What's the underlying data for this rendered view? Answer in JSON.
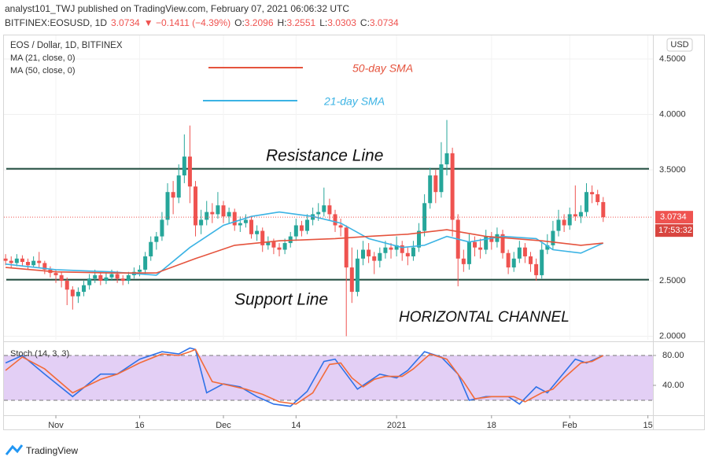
{
  "header": {
    "publisher": "analyst101_TWJ published on TradingView.com, February 07, 2021 06:06:32 UTC",
    "symbol": "BITFINEX:EOSUSD, 1D",
    "price": "3.0734",
    "change": "▼ −0.1411 (−4.39%)",
    "ohlc": [
      {
        "label": "O:",
        "value": "3.2096"
      },
      {
        "label": "H:",
        "value": "3.2551"
      },
      {
        "label": "L:",
        "value": "3.0303"
      },
      {
        "label": "C:",
        "value": "3.0734"
      }
    ]
  },
  "footer": {
    "brand": "TradingView"
  },
  "chart_data": [
    {
      "type": "candlestick",
      "title": "EOS / Dollar, 1D, BITFINEX",
      "currency": "USD",
      "up_color": "#26a69a",
      "down_color": "#ef5350",
      "xlim": [
        -9.3,
        106.9
      ],
      "ylim": [
        1.968,
        4.713
      ],
      "yticks": [
        {
          "value": 2.0,
          "label": "2.0000"
        },
        {
          "value": 2.5,
          "label": "2.5000"
        },
        {
          "value": 3.5,
          "label": "3.5000"
        },
        {
          "value": 4.0,
          "label": "4.0000"
        },
        {
          "value": 4.5,
          "label": "4.5000"
        }
      ],
      "grid": true,
      "x": [
        -9,
        -8,
        -7,
        -6,
        -5,
        -4,
        -3,
        -2,
        -1,
        0,
        1,
        2,
        3,
        4,
        5,
        6,
        7,
        8,
        9,
        10,
        11,
        12,
        13,
        14,
        15,
        16,
        17,
        18,
        19,
        20,
        21,
        22,
        23,
        24,
        25,
        26,
        27,
        28,
        29,
        30,
        31,
        32,
        33,
        34,
        35,
        36,
        37,
        38,
        39,
        40,
        41,
        42,
        43,
        44,
        45,
        46,
        47,
        48,
        49,
        50,
        51,
        52,
        53,
        54,
        55,
        56,
        57,
        58,
        59,
        60,
        61,
        62,
        63,
        64,
        65,
        66,
        67,
        68,
        69,
        70,
        71,
        72,
        73,
        74,
        75,
        76,
        77,
        78,
        79,
        80,
        81,
        82,
        83,
        84,
        85,
        86,
        87,
        88,
        89,
        90,
        91,
        92,
        93,
        94,
        95,
        96,
        97,
        98
      ],
      "ohlc": [
        [
          2.7,
          2.74,
          2.64,
          2.68
        ],
        [
          2.68,
          2.72,
          2.62,
          2.66
        ],
        [
          2.66,
          2.74,
          2.63,
          2.7
        ],
        [
          2.7,
          2.73,
          2.63,
          2.67
        ],
        [
          2.67,
          2.7,
          2.6,
          2.64
        ],
        [
          2.64,
          2.72,
          2.62,
          2.68
        ],
        [
          2.68,
          2.76,
          2.62,
          2.66
        ],
        [
          2.66,
          2.68,
          2.56,
          2.6
        ],
        [
          2.6,
          2.63,
          2.53,
          2.57
        ],
        [
          2.57,
          2.6,
          2.48,
          2.55
        ],
        [
          2.55,
          2.58,
          2.44,
          2.5
        ],
        [
          2.5,
          2.53,
          2.28,
          2.42
        ],
        [
          2.42,
          2.45,
          2.24,
          2.36
        ],
        [
          2.36,
          2.44,
          2.3,
          2.4
        ],
        [
          2.4,
          2.5,
          2.36,
          2.46
        ],
        [
          2.46,
          2.56,
          2.42,
          2.52
        ],
        [
          2.52,
          2.6,
          2.48,
          2.55
        ],
        [
          2.55,
          2.58,
          2.46,
          2.5
        ],
        [
          2.5,
          2.58,
          2.47,
          2.53
        ],
        [
          2.53,
          2.6,
          2.5,
          2.56
        ],
        [
          2.56,
          2.59,
          2.48,
          2.52
        ],
        [
          2.52,
          2.55,
          2.46,
          2.5
        ],
        [
          2.5,
          2.58,
          2.47,
          2.55
        ],
        [
          2.55,
          2.62,
          2.52,
          2.58
        ],
        [
          2.58,
          2.64,
          2.54,
          2.6
        ],
        [
          2.6,
          2.76,
          2.56,
          2.72
        ],
        [
          2.72,
          2.9,
          2.68,
          2.85
        ],
        [
          2.85,
          2.94,
          2.78,
          2.9
        ],
        [
          2.9,
          3.12,
          2.86,
          3.05
        ],
        [
          3.05,
          3.38,
          3.0,
          3.3
        ],
        [
          3.3,
          3.4,
          3.1,
          3.25
        ],
        [
          3.25,
          3.55,
          3.2,
          3.45
        ],
        [
          3.45,
          3.82,
          3.38,
          3.62
        ],
        [
          3.62,
          3.9,
          3.2,
          3.35
        ],
        [
          3.35,
          3.4,
          2.9,
          3.0
        ],
        [
          3.0,
          3.14,
          2.92,
          3.05
        ],
        [
          3.05,
          3.22,
          3.0,
          3.12
        ],
        [
          3.12,
          3.2,
          3.02,
          3.1
        ],
        [
          3.1,
          3.3,
          3.06,
          3.18
        ],
        [
          3.18,
          3.22,
          3.02,
          3.08
        ],
        [
          3.08,
          3.16,
          3.02,
          3.12
        ],
        [
          3.12,
          3.15,
          2.95,
          3.0
        ],
        [
          3.0,
          3.08,
          2.94,
          3.02
        ],
        [
          3.02,
          3.1,
          2.98,
          3.05
        ],
        [
          3.05,
          3.08,
          2.88,
          2.92
        ],
        [
          2.92,
          3.0,
          2.86,
          2.95
        ],
        [
          2.95,
          2.98,
          2.76,
          2.82
        ],
        [
          2.82,
          2.9,
          2.78,
          2.85
        ],
        [
          2.85,
          2.88,
          2.74,
          2.8
        ],
        [
          2.8,
          2.84,
          2.72,
          2.78
        ],
        [
          2.78,
          2.88,
          2.74,
          2.84
        ],
        [
          2.84,
          2.94,
          2.8,
          2.9
        ],
        [
          2.9,
          3.06,
          2.86,
          3.0
        ],
        [
          3.0,
          3.04,
          2.9,
          2.95
        ],
        [
          2.95,
          3.1,
          2.92,
          3.05
        ],
        [
          3.05,
          3.16,
          3.0,
          3.1
        ],
        [
          3.1,
          3.2,
          3.04,
          3.12
        ],
        [
          3.12,
          3.34,
          3.08,
          3.18
        ],
        [
          3.18,
          3.24,
          3.04,
          3.1
        ],
        [
          3.1,
          3.14,
          2.94,
          3.0
        ],
        [
          3.0,
          3.06,
          2.9,
          2.98
        ],
        [
          2.98,
          3.0,
          2.0,
          2.62
        ],
        [
          2.62,
          2.8,
          2.3,
          2.4
        ],
        [
          2.4,
          2.78,
          2.36,
          2.7
        ],
        [
          2.7,
          2.86,
          2.64,
          2.78
        ],
        [
          2.78,
          2.84,
          2.66,
          2.72
        ],
        [
          2.72,
          2.76,
          2.56,
          2.68
        ],
        [
          2.68,
          2.8,
          2.62,
          2.75
        ],
        [
          2.75,
          2.86,
          2.7,
          2.8
        ],
        [
          2.8,
          2.84,
          2.7,
          2.78
        ],
        [
          2.78,
          2.9,
          2.72,
          2.82
        ],
        [
          2.82,
          2.86,
          2.68,
          2.75
        ],
        [
          2.75,
          2.8,
          2.64,
          2.72
        ],
        [
          2.72,
          2.86,
          2.68,
          2.8
        ],
        [
          2.8,
          3.02,
          2.76,
          2.95
        ],
        [
          2.95,
          3.28,
          2.9,
          3.2
        ],
        [
          3.2,
          3.52,
          3.15,
          3.45
        ],
        [
          3.45,
          3.5,
          3.2,
          3.3
        ],
        [
          3.3,
          3.75,
          3.25,
          3.55
        ],
        [
          3.55,
          3.95,
          3.45,
          3.65
        ],
        [
          3.65,
          3.7,
          2.9,
          3.05
        ],
        [
          3.05,
          3.1,
          2.45,
          2.7
        ],
        [
          2.7,
          2.78,
          2.58,
          2.65
        ],
        [
          2.65,
          2.92,
          2.6,
          2.85
        ],
        [
          2.85,
          2.9,
          2.72,
          2.8
        ],
        [
          2.8,
          2.88,
          2.7,
          2.78
        ],
        [
          2.78,
          2.96,
          2.74,
          2.9
        ],
        [
          2.9,
          2.94,
          2.78,
          2.85
        ],
        [
          2.85,
          2.98,
          2.8,
          2.92
        ],
        [
          2.92,
          2.96,
          2.7,
          2.75
        ],
        [
          2.75,
          2.78,
          2.56,
          2.62
        ],
        [
          2.62,
          2.76,
          2.58,
          2.7
        ],
        [
          2.7,
          2.86,
          2.66,
          2.8
        ],
        [
          2.8,
          2.84,
          2.66,
          2.72
        ],
        [
          2.72,
          2.76,
          2.58,
          2.65
        ],
        [
          2.65,
          2.7,
          2.5,
          2.55
        ],
        [
          2.55,
          2.84,
          2.52,
          2.78
        ],
        [
          2.78,
          2.92,
          2.74,
          2.82
        ],
        [
          2.82,
          3.04,
          2.78,
          2.95
        ],
        [
          2.95,
          3.14,
          2.9,
          3.05
        ],
        [
          3.05,
          3.1,
          2.94,
          3.0
        ],
        [
          3.0,
          3.16,
          2.96,
          3.1
        ],
        [
          3.1,
          3.36,
          3.04,
          3.08
        ],
        [
          3.08,
          3.18,
          3.02,
          3.12
        ],
        [
          3.12,
          3.38,
          3.08,
          3.3
        ],
        [
          3.3,
          3.36,
          3.2,
          3.28
        ],
        [
          3.28,
          3.32,
          3.18,
          3.2096
        ],
        [
          3.2096,
          3.2551,
          3.0303,
          3.0734
        ]
      ],
      "series": [
        {
          "name": "MA (21, close, 0)",
          "color": "#3bb3e4",
          "x": [
            -9,
            0,
            10,
            18,
            24,
            30,
            35,
            40,
            46,
            51,
            56,
            62,
            66,
            70,
            74,
            80,
            86,
            89,
            94,
            98
          ],
          "values": [
            2.65,
            2.6,
            2.58,
            2.55,
            2.8,
            3.0,
            3.08,
            3.12,
            3.08,
            3.02,
            2.88,
            2.8,
            2.82,
            2.9,
            2.85,
            2.9,
            2.88,
            2.78,
            2.75,
            2.84
          ]
        },
        {
          "name": "MA (50, close, 0)",
          "color": "#e5533d",
          "x": [
            -9,
            0,
            10,
            18,
            25,
            32,
            40,
            50,
            56,
            63,
            70,
            77,
            87,
            94,
            98
          ],
          "values": [
            2.62,
            2.58,
            2.57,
            2.57,
            2.7,
            2.82,
            2.86,
            2.88,
            2.9,
            2.92,
            2.96,
            2.9,
            2.86,
            2.82,
            2.84
          ]
        }
      ],
      "levels": [
        3.51,
        2.51
      ],
      "level_color": "#1e4a3c",
      "annotations": [
        {
          "text": "Resistance Line"
        },
        {
          "text": "Support Line"
        },
        {
          "text": "HORIZONTAL CHANNEL"
        },
        {
          "text": "50-day SMA",
          "color": "#e5533d"
        },
        {
          "text": "21-day SMA",
          "color": "#3bb3e4"
        }
      ],
      "last_price": {
        "value": 3.0734,
        "label": "3.0734"
      },
      "countdown": "17:53:32"
    },
    {
      "type": "line",
      "title": "Stoch (14, 3, 3)",
      "xlim": [
        -9.3,
        106.9
      ],
      "ylim": [
        1.1,
        96.8
      ],
      "yticks": [
        {
          "value": 80,
          "label": "80.00"
        },
        {
          "value": 40,
          "label": "40.00"
        }
      ],
      "bands": [
        80,
        20
      ],
      "band_color": "#e3cff5",
      "xticks": [
        {
          "value": 0,
          "label": "Nov"
        },
        {
          "value": 15,
          "label": "16"
        },
        {
          "value": 30,
          "label": "Dec"
        },
        {
          "value": 43,
          "label": "14"
        },
        {
          "value": 61,
          "label": "2021"
        },
        {
          "value": 78,
          "label": "18"
        },
        {
          "value": 92,
          "label": "Feb"
        },
        {
          "value": 106,
          "label": "15"
        }
      ],
      "series": [
        {
          "color": "#2f72e8",
          "x": [
            -9,
            -6,
            -2,
            3,
            8,
            11,
            15,
            19,
            22,
            24,
            25,
            27,
            30,
            33,
            36,
            39,
            42,
            45,
            48,
            50,
            52,
            54,
            56,
            58,
            61,
            63,
            66,
            69,
            72,
            74,
            77,
            81,
            83,
            86,
            88,
            90,
            93,
            95,
            98
          ],
          "values": [
            70,
            80,
            55,
            25,
            55,
            55,
            75,
            85,
            82,
            90,
            88,
            30,
            42,
            38,
            25,
            15,
            12,
            32,
            72,
            75,
            55,
            35,
            45,
            55,
            50,
            60,
            85,
            78,
            55,
            20,
            25,
            25,
            15,
            38,
            30,
            48,
            75,
            70,
            80
          ]
        },
        {
          "color": "#f26b3a",
          "x": [
            -9,
            -6,
            -2,
            3,
            8,
            11,
            15,
            19,
            22,
            24,
            25,
            28,
            31,
            34,
            37,
            40,
            43,
            46,
            49,
            51,
            53,
            55,
            57,
            59,
            62,
            64,
            67,
            70,
            73,
            75,
            78,
            82,
            84,
            87,
            89,
            91,
            94,
            96,
            98
          ],
          "values": [
            60,
            78,
            62,
            30,
            48,
            55,
            70,
            82,
            80,
            85,
            88,
            45,
            40,
            35,
            28,
            18,
            15,
            30,
            68,
            70,
            50,
            38,
            48,
            52,
            52,
            62,
            82,
            75,
            45,
            22,
            25,
            25,
            18,
            30,
            35,
            50,
            70,
            72,
            80
          ]
        }
      ]
    }
  ]
}
